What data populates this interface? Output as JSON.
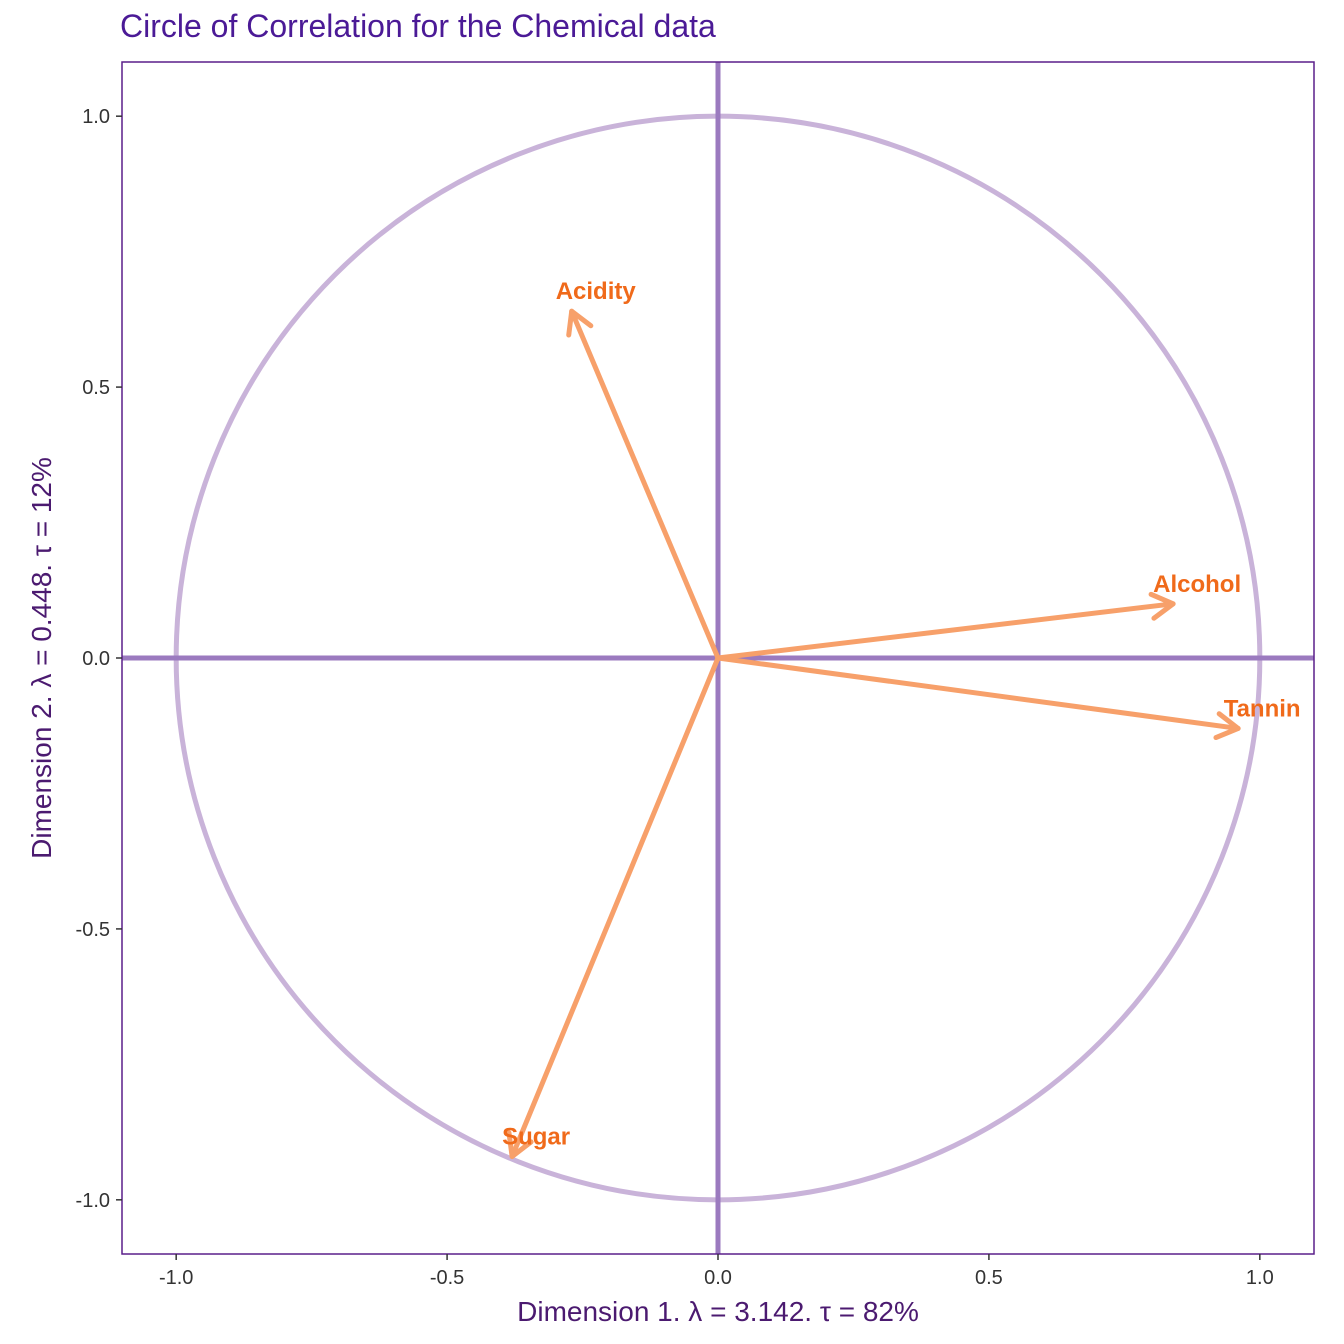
{
  "chart_data": {
    "type": "scatter",
    "title": "Circle of Correlation for the Chemical data",
    "xlabel": "Dimension 1.   λ = 3.142.  τ = 82%",
    "ylabel": "Dimension 2.   λ = 0.448.  τ = 12%",
    "xlim": [
      -1.1,
      1.1
    ],
    "ylim": [
      -1.1,
      1.1
    ],
    "xticks": [
      -1.0,
      -0.5,
      0.0,
      0.5,
      1.0
    ],
    "xtick_labels": [
      "-1.0",
      "-0.5",
      "0.0",
      "0.5",
      "1.0"
    ],
    "yticks": [
      -1.0,
      -0.5,
      0.0,
      0.5,
      1.0
    ],
    "ytick_labels": [
      "-1.0",
      "-0.5",
      "0.0",
      "0.5",
      "1.0"
    ],
    "grid": true,
    "unit_circle": true,
    "points": [
      {
        "label": "Acidity",
        "x": -0.27,
        "y": 0.64
      },
      {
        "label": "Alcohol",
        "x": 0.84,
        "y": 0.1
      },
      {
        "label": "Tannin",
        "x": 0.96,
        "y": -0.13
      },
      {
        "label": "Sugar",
        "x": -0.38,
        "y": -0.92
      }
    ],
    "colors": {
      "title": "#4B1A96",
      "axis_title": "#4B1A70",
      "panel_border": "#5A1F8A",
      "circle": "#C9B3D9",
      "zero_lines": "#9B7ABF",
      "arrows": "#F7A06A",
      "labels": "#F06A1A",
      "grid": "#FFFFFF"
    }
  }
}
